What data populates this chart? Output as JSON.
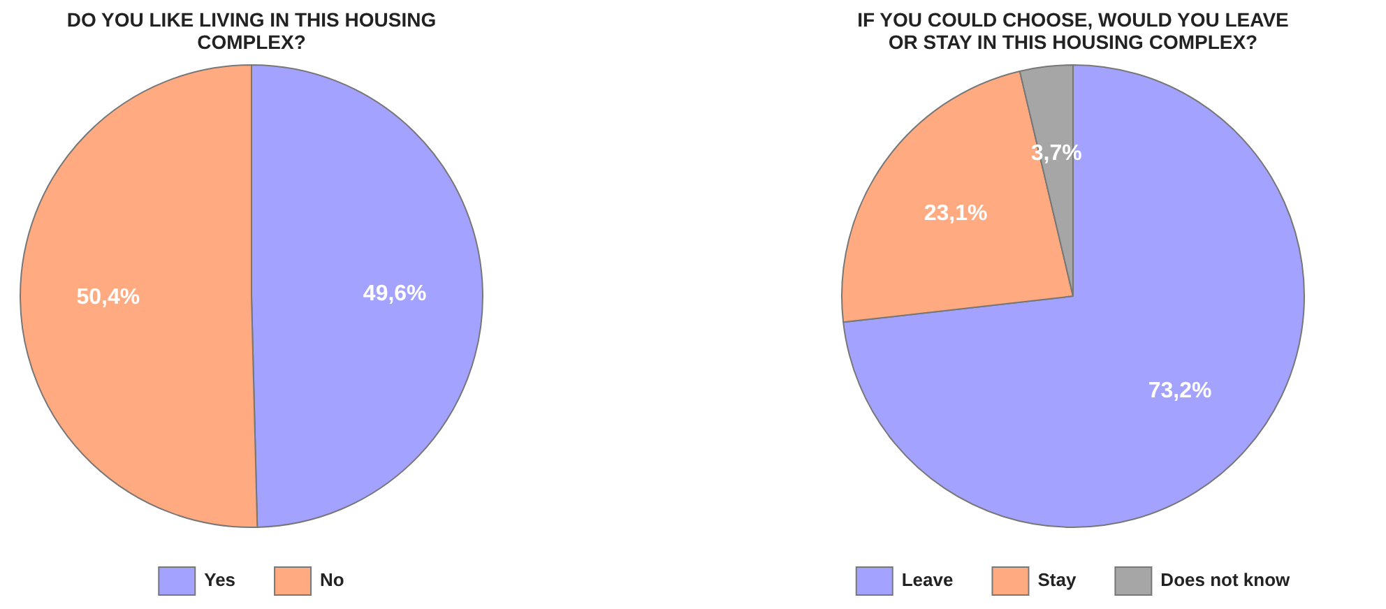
{
  "chart_data": [
    {
      "type": "pie",
      "title": "DO YOU LIKE LIVING IN THIS HOUSING COMPLEX?",
      "categories": [
        "Yes",
        "No"
      ],
      "values": [
        49.6,
        50.4
      ],
      "colors": [
        "#a3a3ff",
        "#ffaa80"
      ],
      "value_labels": [
        "49,6%",
        "50,4%"
      ],
      "legend": "bottom"
    },
    {
      "type": "pie",
      "title": "IF YOU COULD CHOOSE, WOULD YOU LEAVE OR STAY IN THIS HOUSING COMPLEX?",
      "categories": [
        "Leave",
        "Stay",
        "Does not know"
      ],
      "values": [
        73.2,
        23.1,
        3.7
      ],
      "colors": [
        "#a3a3ff",
        "#ffaa80",
        "#a6a6a6"
      ],
      "value_labels": [
        "73,2%",
        "23,1%",
        "3,7%"
      ],
      "legend": "bottom"
    }
  ]
}
